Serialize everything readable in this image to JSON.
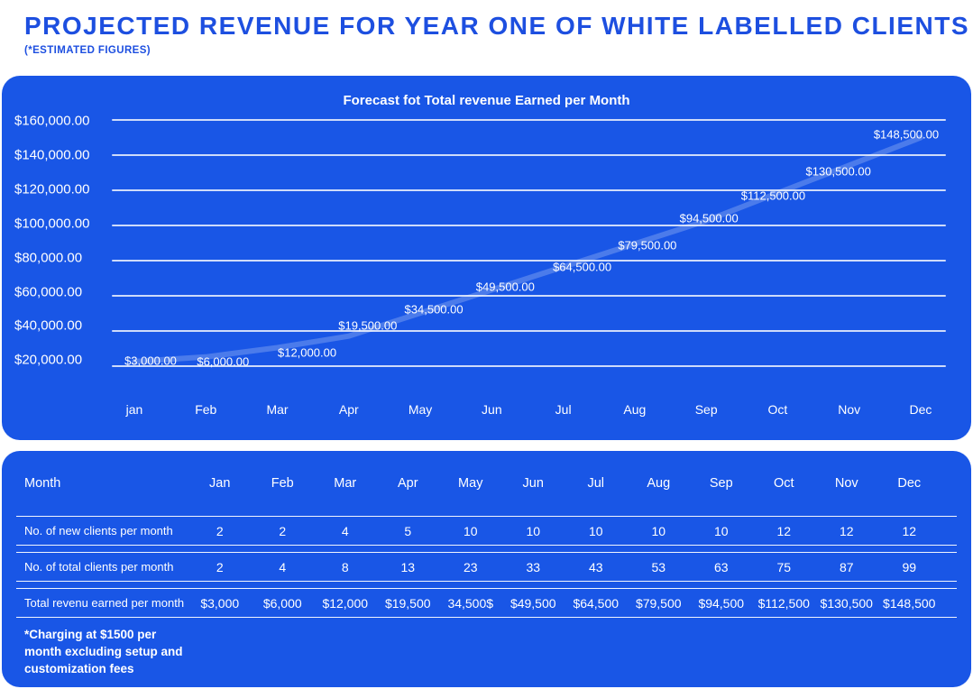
{
  "page": {
    "title": "PROJECTED REVENUE FOR YEAR ONE OF WHITE LABELLED CLIENTS",
    "subtitle": "(*ESTIMATED FIGURES)"
  },
  "colors": {
    "title_blue": "#1d4fe0",
    "panel_blue": "#1956e6",
    "text": "#ffffff",
    "grid_line": "#ffffffc9",
    "chart_line": "#ffffff38",
    "divider": "#fffffff0"
  },
  "chart_data": {
    "type": "line",
    "title": "Forecast fot Total revenue Earned per Month",
    "x": [
      "jan",
      "Feb",
      "Mar",
      "Apr",
      "May",
      "Jun",
      "Jul",
      "Aug",
      "Sep",
      "Oct",
      "Nov",
      "Dec"
    ],
    "values": [
      3000,
      6000,
      12000,
      19500,
      34500,
      49500,
      64500,
      79500,
      94500,
      112500,
      130500,
      148500
    ],
    "point_labels": [
      "$3,000.00",
      "$6,000.00",
      "$12,000.00",
      "$19,500.00",
      "$34,500.00",
      "$49,500.00",
      "$64,500.00",
      "$79,500.00",
      "$94,500.00",
      "$112,500.00",
      "$130,500.00",
      "$148,500.00"
    ],
    "y_ticks": [
      "$160,000.00",
      "$140,000.00",
      "$120,000.00",
      "$100,000.00",
      "$80,000.00",
      "$60,000.00",
      "$40,000.00",
      "$20,000.00"
    ],
    "y_tick_values": [
      160000,
      140000,
      120000,
      100000,
      80000,
      60000,
      40000,
      20000
    ],
    "ylim": [
      0,
      160000
    ],
    "grid": true,
    "legend": false,
    "layout": {
      "label_dx": [
        18,
        19,
        33,
        21,
        15,
        15,
        21,
        14,
        3,
        -5,
        -12,
        -16
      ],
      "label_dy": [
        -1,
        5,
        5,
        -12,
        -4,
        -4,
        0,
        2,
        -3,
        3,
        7,
        -4
      ]
    }
  },
  "table": {
    "header": [
      "Month",
      "Jan",
      "Feb",
      "Mar",
      "Apr",
      "May",
      "Jun",
      "Jul",
      "Aug",
      "Sep",
      "Oct",
      "Nov",
      "Dec"
    ],
    "rows": [
      {
        "label": "No. of new clients per month",
        "values": [
          "2",
          "2",
          "4",
          "5",
          "10",
          "10",
          "10",
          "10",
          "10",
          "12",
          "12",
          "12"
        ]
      },
      {
        "label": "No. of total clients per month",
        "values": [
          "2",
          "4",
          "8",
          "13",
          "23",
          "33",
          "43",
          "53",
          "63",
          "75",
          "87",
          "99"
        ]
      },
      {
        "label": "Total revenu earned per month",
        "values": [
          "$3,000",
          "$6,000",
          "$12,000",
          "$19,500",
          "34,500$",
          "$49,500",
          "$64,500",
          "$79,500",
          "$94,500",
          "$112,500",
          "$130,500",
          "$148,500"
        ]
      }
    ],
    "footnote": "*Charging at $1500 per\nmonth excluding setup and\ncustomization fees"
  }
}
